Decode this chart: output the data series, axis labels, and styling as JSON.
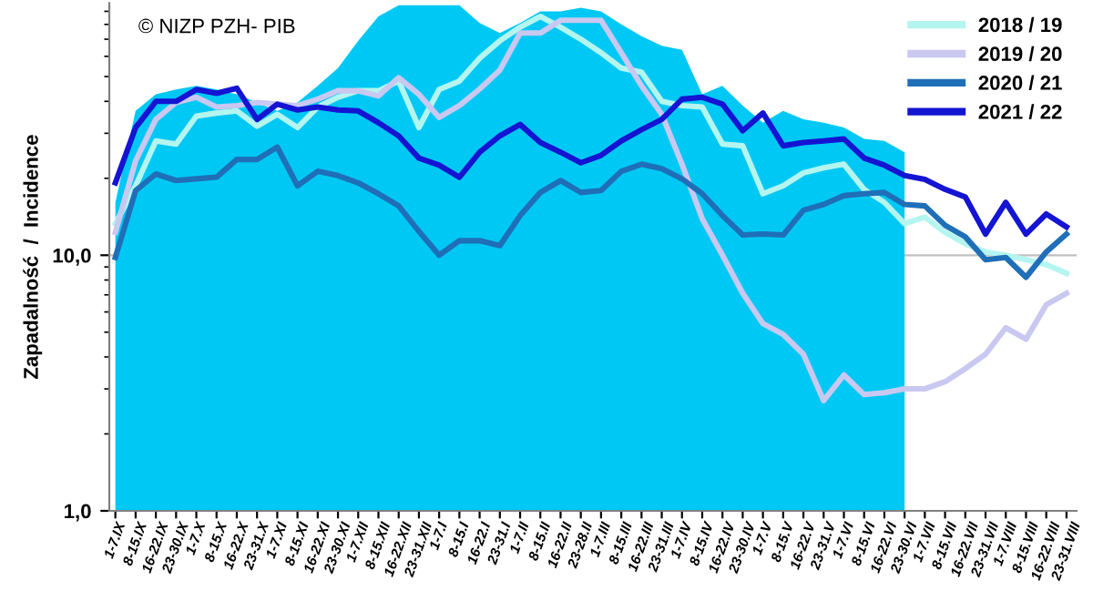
{
  "chart_data": {
    "type": "line",
    "ylabel": "Zapadalność  /  Incidence",
    "annotations": [
      "© NIZP PZH- PIB"
    ],
    "categories": [
      "1-7.IX",
      "8-15.IX",
      "16-22.IX",
      "23-30.IX",
      "1-7.X",
      "8-15.X",
      "16-22.X",
      "23-31.X",
      "1-7.XI",
      "8-15.XI",
      "16-22.XI",
      "23-30.XI",
      "1-7.XII",
      "8-15.XII",
      "16-22.XII",
      "23-31.XII",
      "1-7.I",
      "8-15.I",
      "16-22.I",
      "23-31.I",
      "1-7.II",
      "8-15.II",
      "16-22.II",
      "23-28.II",
      "1-7.III",
      "8-15.III",
      "16-22.III",
      "23-31.III",
      "1-7.IV",
      "8-15.IV",
      "16-22.IV",
      "23-30.IV",
      "1-7.V",
      "8-15.V",
      "16-22.V",
      "23-31.V",
      "1-7.VI",
      "8-15.VI",
      "16-22.VI",
      "23-30.VI",
      "1-7.VII",
      "8-15.VII",
      "16-22.VII",
      "23-31.VII",
      "1-7.VIII",
      "8-15.VIII",
      "16-22.VIII",
      "23-31.VIII"
    ],
    "series": [
      {
        "type": "area",
        "color": "#00c8f5",
        "values": [
          16.1,
          36.7,
          42.6,
          44.5,
          46,
          44.5,
          42.6,
          39.6,
          36.7,
          39.6,
          46,
          54,
          69,
          86,
          95,
          95,
          95,
          95,
          81,
          74,
          81,
          90,
          90,
          93,
          90,
          80,
          72,
          66,
          63.6,
          42.6,
          46,
          38.5,
          33,
          36.7,
          34,
          33,
          31.6,
          28.5,
          28,
          25.3,
          null,
          null,
          null,
          null,
          null,
          null,
          null,
          null
        ]
      },
      {
        "name": "2018 / 19",
        "color": "#b4f5f0",
        "values": [
          13.3,
          18.7,
          28,
          27.2,
          35,
          36,
          36.7,
          32,
          35.6,
          31.6,
          38,
          41.5,
          44,
          44,
          48,
          31.6,
          44.5,
          48,
          59,
          69,
          78,
          86,
          78,
          70,
          62,
          54,
          52,
          40,
          38.5,
          38,
          27.2,
          26.8,
          17.4,
          18.7,
          21,
          22,
          22.7,
          18.1,
          16.1,
          13.3,
          14.1,
          12.3,
          11.1,
          10.3,
          10,
          9.6,
          9.2,
          8.5
        ]
      },
      {
        "name": "2019 / 20",
        "color": "#c8c8f0",
        "values": [
          12.3,
          23.4,
          34,
          39.6,
          41.5,
          38,
          38.5,
          39.6,
          39,
          38.5,
          40.8,
          44,
          44,
          42,
          49.5,
          42.6,
          34.6,
          38.5,
          44.7,
          53,
          74,
          74,
          83,
          83,
          83,
          62,
          46,
          35.6,
          22.7,
          13.9,
          10,
          7.1,
          5.4,
          4.9,
          4.1,
          2.7,
          3.4,
          2.85,
          2.9,
          3,
          3,
          3.2,
          3.6,
          4.1,
          5.2,
          4.7,
          6.4,
          7.1
        ]
      },
      {
        "name": "2020 / 21",
        "color": "#1f6fb8",
        "values": [
          9.8,
          17.9,
          20.8,
          19.6,
          19.9,
          20.2,
          23.7,
          23.7,
          26.5,
          18.7,
          21.3,
          20.5,
          19.2,
          17.4,
          15.6,
          12.4,
          10,
          11.4,
          11.4,
          10.9,
          14.3,
          17.6,
          19.6,
          17.6,
          17.9,
          21.3,
          22.7,
          21.8,
          19.9,
          17.4,
          14.3,
          12,
          12.1,
          12,
          15,
          15.8,
          17.1,
          17.4,
          17.6,
          15.8,
          15.6,
          13.1,
          11.8,
          9.6,
          9.8,
          8.2,
          10.3,
          12.1
        ]
      },
      {
        "name": "2021 / 22",
        "color": "#1414d2",
        "values": [
          19.2,
          31.6,
          40,
          40,
          44.5,
          43,
          45,
          34,
          39,
          37,
          38,
          37,
          36.7,
          33,
          29.3,
          24,
          22.5,
          20.2,
          25.3,
          29.3,
          32.5,
          27.6,
          25.3,
          23,
          24.6,
          28,
          31,
          34,
          40.8,
          41.5,
          39,
          30.7,
          36,
          26.8,
          27.6,
          28,
          28.5,
          24,
          22.5,
          20.5,
          19.8,
          18.1,
          16.9,
          12.1,
          16.1,
          12.1,
          14.5,
          12.9
        ]
      }
    ],
    "log": "y",
    "ylim": [
      1,
      97
    ],
    "yticks": [
      {
        "value": 1,
        "label": "1,0"
      },
      {
        "value": 10,
        "label": "10,0"
      }
    ],
    "grid": "y",
    "legend": "top right",
    "marker": "none",
    "line_style": "solid"
  }
}
